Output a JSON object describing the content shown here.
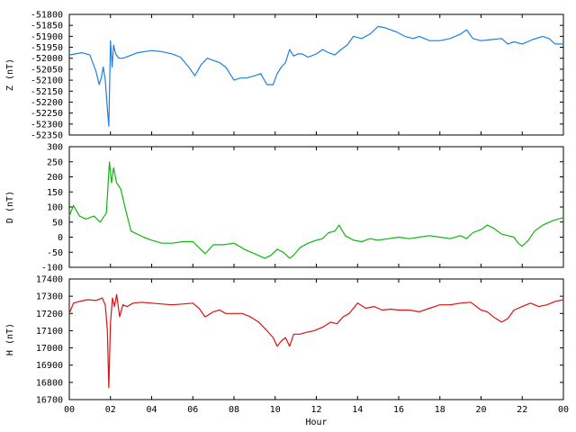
{
  "chart_data": [
    {
      "type": "line",
      "ylabel": "Z (nT)",
      "ylim": [
        -52350,
        -51800
      ],
      "yticks": [
        -51800,
        -51850,
        -51900,
        -51950,
        -52000,
        -52050,
        -52100,
        -52150,
        -52200,
        -52250,
        -52300,
        -52350
      ],
      "xlim": [
        0,
        24
      ],
      "color": "#1f7fe0",
      "series": [
        {
          "x": [
            0,
            0.3,
            0.6,
            1.0,
            1.3,
            1.45,
            1.55,
            1.65,
            1.75,
            1.85,
            1.92,
            2.0,
            2.08,
            2.15,
            2.25,
            2.4,
            2.6,
            2.9,
            3.3,
            4.0,
            4.5,
            5.0,
            5.4,
            5.8,
            6.1,
            6.4,
            6.7,
            7.0,
            7.3,
            7.6,
            8.0,
            8.3,
            8.6,
            9.0,
            9.3,
            9.6,
            9.9,
            10.1,
            10.3,
            10.5,
            10.7,
            10.9,
            11.1,
            11.3,
            11.6,
            12.0,
            12.3,
            12.6,
            12.9,
            13.2,
            13.5,
            13.8,
            14.2,
            14.6,
            15.0,
            15.3,
            15.6,
            15.9,
            16.3,
            16.7,
            17.0,
            17.5,
            18.0,
            18.5,
            19.0,
            19.3,
            19.6,
            20.0,
            20.5,
            21.0,
            21.3,
            21.6,
            22.0,
            22.5,
            23.0,
            23.3,
            23.6,
            24.0
          ],
          "y": [
            -51985,
            -51980,
            -51975,
            -51985,
            -52060,
            -52120,
            -52090,
            -52040,
            -52100,
            -52230,
            -52310,
            -51920,
            -52040,
            -51940,
            -51980,
            -52000,
            -52000,
            -51990,
            -51975,
            -51965,
            -51970,
            -51980,
            -51995,
            -52040,
            -52080,
            -52030,
            -52000,
            -52010,
            -52020,
            -52040,
            -52100,
            -52090,
            -52090,
            -52080,
            -52070,
            -52120,
            -52120,
            -52070,
            -52040,
            -52020,
            -51960,
            -51990,
            -51980,
            -51980,
            -51995,
            -51980,
            -51960,
            -51975,
            -51985,
            -51960,
            -51940,
            -51900,
            -51910,
            -51890,
            -51855,
            -51860,
            -51870,
            -51880,
            -51900,
            -51910,
            -51900,
            -51920,
            -51920,
            -51910,
            -51890,
            -51870,
            -51910,
            -51920,
            -51915,
            -51910,
            -51935,
            -51925,
            -51935,
            -51915,
            -51900,
            -51910,
            -51935,
            -51935
          ]
        }
      ]
    },
    {
      "type": "line",
      "ylabel": "D (nT)",
      "ylim": [
        -100,
        300
      ],
      "yticks": [
        300,
        250,
        200,
        150,
        100,
        50,
        0,
        -50,
        -100
      ],
      "xlim": [
        0,
        24
      ],
      "color": "#11b511",
      "series": [
        {
          "x": [
            0,
            0.2,
            0.5,
            0.8,
            1.2,
            1.5,
            1.8,
            1.95,
            2.05,
            2.15,
            2.3,
            2.5,
            2.7,
            2.85,
            3.0,
            3.3,
            3.6,
            4.0,
            4.5,
            5.0,
            5.5,
            6.0,
            6.3,
            6.6,
            7.0,
            7.5,
            8.0,
            8.5,
            9.0,
            9.5,
            9.8,
            10.1,
            10.4,
            10.7,
            10.9,
            11.2,
            11.6,
            12.0,
            12.3,
            12.6,
            12.9,
            13.1,
            13.4,
            13.8,
            14.2,
            14.6,
            15.0,
            15.5,
            16.0,
            16.5,
            17.0,
            17.5,
            18.0,
            18.5,
            19.0,
            19.3,
            19.6,
            20.0,
            20.3,
            20.6,
            21.0,
            21.3,
            21.6,
            21.8,
            22.0,
            22.3,
            22.6,
            23.0,
            23.5,
            24.0
          ],
          "y": [
            70,
            105,
            70,
            60,
            70,
            50,
            80,
            250,
            180,
            230,
            180,
            160,
            100,
            60,
            20,
            10,
            0,
            -10,
            -20,
            -20,
            -15,
            -15,
            -35,
            -55,
            -25,
            -25,
            -20,
            -40,
            -55,
            -70,
            -60,
            -40,
            -50,
            -70,
            -60,
            -35,
            -20,
            -10,
            -5,
            15,
            20,
            40,
            5,
            -10,
            -15,
            -5,
            -10,
            -5,
            0,
            -5,
            0,
            5,
            0,
            -5,
            5,
            -5,
            15,
            25,
            40,
            30,
            10,
            5,
            0,
            -20,
            -30,
            -10,
            20,
            40,
            55,
            65
          ]
        }
      ]
    },
    {
      "type": "line",
      "ylabel": "H (nT)",
      "ylim": [
        16700,
        17400
      ],
      "yticks": [
        17400,
        17300,
        17200,
        17100,
        17000,
        16900,
        16800,
        16700
      ],
      "xlim": [
        0,
        24
      ],
      "xticks": [
        "00",
        "02",
        "04",
        "06",
        "08",
        "10",
        "12",
        "14",
        "16",
        "18",
        "20",
        "22",
        "00"
      ],
      "xlabel": "Hour",
      "color": "#dd1111",
      "series": [
        {
          "x": [
            0,
            0.2,
            0.5,
            0.9,
            1.3,
            1.6,
            1.75,
            1.85,
            1.92,
            2.0,
            2.1,
            2.2,
            2.3,
            2.45,
            2.6,
            2.8,
            3.1,
            3.5,
            4.0,
            4.5,
            5.0,
            5.5,
            6.0,
            6.3,
            6.6,
            7.0,
            7.3,
            7.6,
            8.0,
            8.4,
            8.8,
            9.2,
            9.6,
            9.9,
            10.1,
            10.3,
            10.5,
            10.7,
            10.9,
            11.2,
            11.5,
            11.9,
            12.3,
            12.7,
            13.0,
            13.3,
            13.6,
            14.0,
            14.4,
            14.8,
            15.2,
            15.6,
            16.0,
            16.5,
            17.0,
            17.5,
            18.0,
            18.5,
            19.0,
            19.5,
            20.0,
            20.3,
            20.6,
            21.0,
            21.3,
            21.6,
            22.0,
            22.4,
            22.8,
            23.2,
            23.6,
            24.0
          ],
          "y": [
            17200,
            17260,
            17270,
            17280,
            17275,
            17290,
            17250,
            17100,
            16770,
            17150,
            17290,
            17240,
            17310,
            17180,
            17250,
            17240,
            17260,
            17265,
            17260,
            17255,
            17250,
            17255,
            17260,
            17230,
            17180,
            17210,
            17220,
            17200,
            17200,
            17200,
            17180,
            17150,
            17100,
            17060,
            17010,
            17040,
            17060,
            17010,
            17080,
            17080,
            17090,
            17100,
            17120,
            17150,
            17140,
            17180,
            17200,
            17260,
            17230,
            17240,
            17220,
            17225,
            17220,
            17220,
            17210,
            17230,
            17250,
            17250,
            17260,
            17265,
            17220,
            17210,
            17180,
            17150,
            17170,
            17220,
            17240,
            17260,
            17240,
            17250,
            17270,
            17280
          ]
        }
      ]
    }
  ]
}
